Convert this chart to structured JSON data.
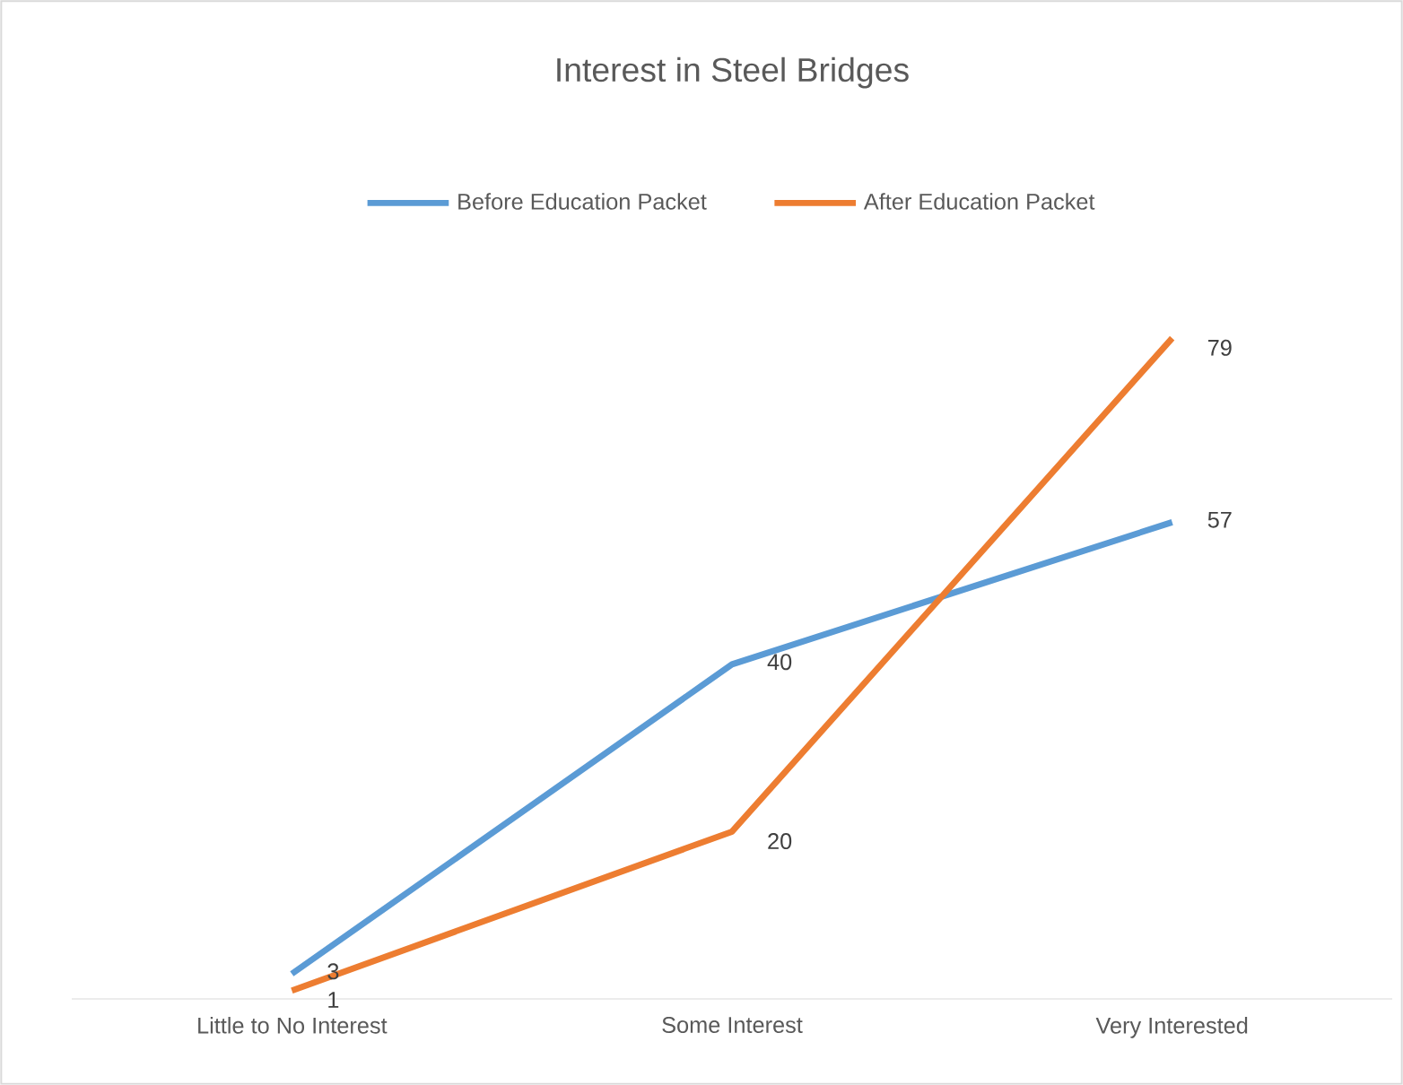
{
  "chart_data": {
    "type": "line",
    "title": "Interest in Steel Bridges",
    "categories": [
      "Little to No Interest",
      "Some Interest",
      "Very Interested"
    ],
    "series": [
      {
        "name": "Before Education Packet",
        "color": "#5b9bd5",
        "values": [
          3,
          40,
          57
        ]
      },
      {
        "name": "After Education Packet",
        "color": "#ed7d31",
        "values": [
          1,
          20,
          79
        ]
      }
    ],
    "data_labels": true,
    "legend": "top",
    "marker": "none",
    "line_style": "solid"
  }
}
